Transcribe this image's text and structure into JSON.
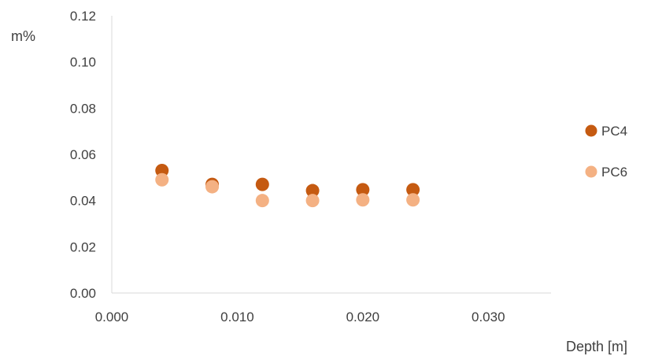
{
  "chart_data": {
    "type": "scatter",
    "title": "",
    "xlabel": "Depth [m]",
    "ylabel": "m%",
    "xlim": [
      0.0,
      0.035
    ],
    "ylim": [
      0.0,
      0.12
    ],
    "xticks": [
      "0.000",
      "0.010",
      "0.020",
      "0.030"
    ],
    "yticks": [
      "0.00",
      "0.02",
      "0.04",
      "0.06",
      "0.08",
      "0.10",
      "0.12"
    ],
    "grid": false,
    "legend_position": "right",
    "series": [
      {
        "name": "PC4",
        "color": "#C55A11",
        "x": [
          0.004,
          0.008,
          0.012,
          0.016,
          0.02,
          0.024
        ],
        "y": [
          0.053,
          0.047,
          0.047,
          0.0443,
          0.0447,
          0.0447
        ]
      },
      {
        "name": "PC6",
        "color": "#F4B183",
        "x": [
          0.004,
          0.008,
          0.012,
          0.016,
          0.02,
          0.024
        ],
        "y": [
          0.049,
          0.046,
          0.04,
          0.04,
          0.0403,
          0.0403
        ]
      }
    ]
  }
}
